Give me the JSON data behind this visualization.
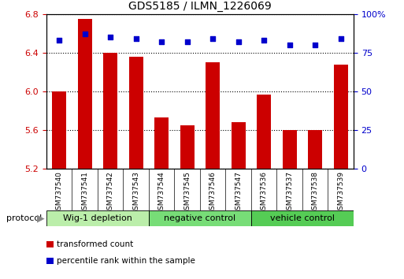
{
  "title": "GDS5185 / ILMN_1226069",
  "samples": [
    "GSM737540",
    "GSM737541",
    "GSM737542",
    "GSM737543",
    "GSM737544",
    "GSM737545",
    "GSM737546",
    "GSM737547",
    "GSM737536",
    "GSM737537",
    "GSM737538",
    "GSM737539"
  ],
  "bar_values": [
    6.0,
    6.75,
    6.4,
    6.36,
    5.73,
    5.65,
    6.3,
    5.68,
    5.97,
    5.6,
    5.6,
    6.28
  ],
  "percentile_values": [
    83,
    87,
    85,
    84,
    82,
    82,
    84,
    82,
    83,
    80,
    80,
    84
  ],
  "ylim_left": [
    5.2,
    6.8
  ],
  "ylim_right": [
    0,
    100
  ],
  "yticks_left": [
    5.2,
    5.6,
    6.0,
    6.4,
    6.8
  ],
  "yticks_right": [
    0,
    25,
    50,
    75,
    100
  ],
  "bar_color": "#cc0000",
  "dot_color": "#0000cc",
  "groups": [
    {
      "label": "Wig-1 depletion",
      "start": 0,
      "end": 4,
      "color": "#bbeeaa"
    },
    {
      "label": "negative control",
      "start": 4,
      "end": 8,
      "color": "#77dd77"
    },
    {
      "label": "vehicle control",
      "start": 8,
      "end": 12,
      "color": "#55cc55"
    }
  ],
  "protocol_label": "protocol",
  "legend_bar_label": "transformed count",
  "legend_dot_label": "percentile rank within the sample",
  "tick_label_color_left": "#cc0000",
  "tick_label_color_right": "#0000cc",
  "bar_bottom": 5.2,
  "bar_width": 0.55,
  "xlim": [
    -0.5,
    11.5
  ]
}
